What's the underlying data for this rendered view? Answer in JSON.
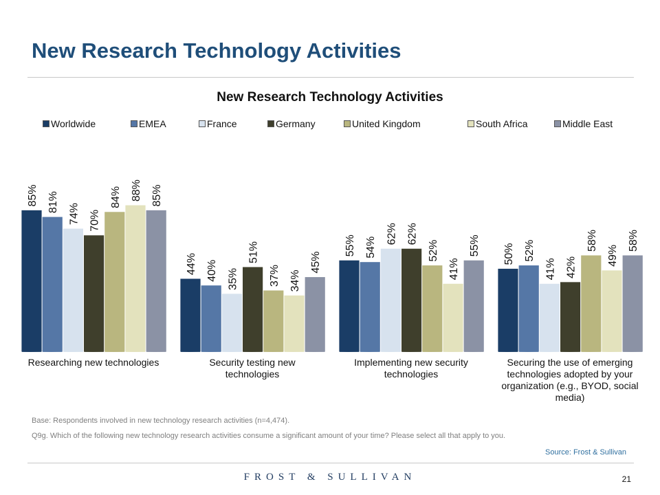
{
  "slide": {
    "title": "New Research Technology Activities",
    "base_note": "Base: Respondents involved in new technology research activities (n=4,474).",
    "question_note": "Q9g. Which of the following new technology research activities consume a significant amount of your time? Please select all that apply to you.",
    "source": "Source: Frost & Sullivan",
    "brand": "FROST & SULLIVAN",
    "page_number": "21"
  },
  "colors": {
    "title": "#1f4e79",
    "series": [
      "#1a3d66",
      "#5577a6",
      "#d7e2ee",
      "#3f3f2c",
      "#b9b67f",
      "#e3e2bd",
      "#8b92a5"
    ]
  },
  "chart_data": {
    "type": "bar",
    "title": "New Research Technology Activities",
    "xlabel": "",
    "ylabel": "",
    "ylim": [
      0,
      100
    ],
    "grid": false,
    "legend_position": "top",
    "categories": [
      "Researching new technologies",
      "Security testing new technologies",
      "Implementing new security technologies",
      "Securing the use of emerging technologies adopted by your organization (e.g., BYOD, social media)"
    ],
    "category_lines": [
      [
        "Researching new technologies"
      ],
      [
        "Security testing new",
        "technologies"
      ],
      [
        "Implementing new security",
        "technologies"
      ],
      [
        "Securing the use of emerging",
        "technologies adopted by your",
        "organization (e.g., BYOD, social",
        "media)"
      ]
    ],
    "series": [
      {
        "name": "Worldwide",
        "values": [
          85,
          44,
          55,
          50
        ]
      },
      {
        "name": "EMEA",
        "values": [
          81,
          40,
          54,
          52
        ]
      },
      {
        "name": "France",
        "values": [
          74,
          35,
          62,
          41
        ]
      },
      {
        "name": "Germany",
        "values": [
          70,
          51,
          62,
          42
        ]
      },
      {
        "name": "United Kingdom",
        "values": [
          84,
          37,
          52,
          58
        ]
      },
      {
        "name": "South Africa",
        "values": [
          88,
          34,
          41,
          49
        ]
      },
      {
        "name": "Middle East",
        "values": [
          85,
          45,
          55,
          58
        ]
      }
    ],
    "value_suffix": "%"
  }
}
